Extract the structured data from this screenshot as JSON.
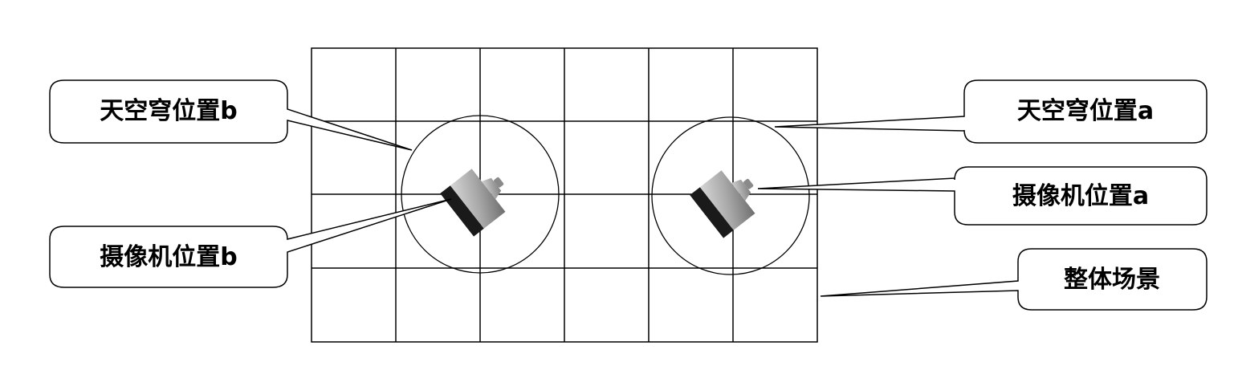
{
  "callouts": {
    "dome_b": "天空穹位置b",
    "camera_b": "摄像机位置b",
    "dome_a": "天空穹位置a",
    "camera_a": "摄像机位置a",
    "scene": "整体场景"
  },
  "grid": {
    "columns": 6,
    "rows": 4
  },
  "colors": {
    "line": "#000000",
    "bubble_fill": "#ffffff",
    "camera_body": "#9e9e9e",
    "camera_face": "#1a1a1a"
  }
}
